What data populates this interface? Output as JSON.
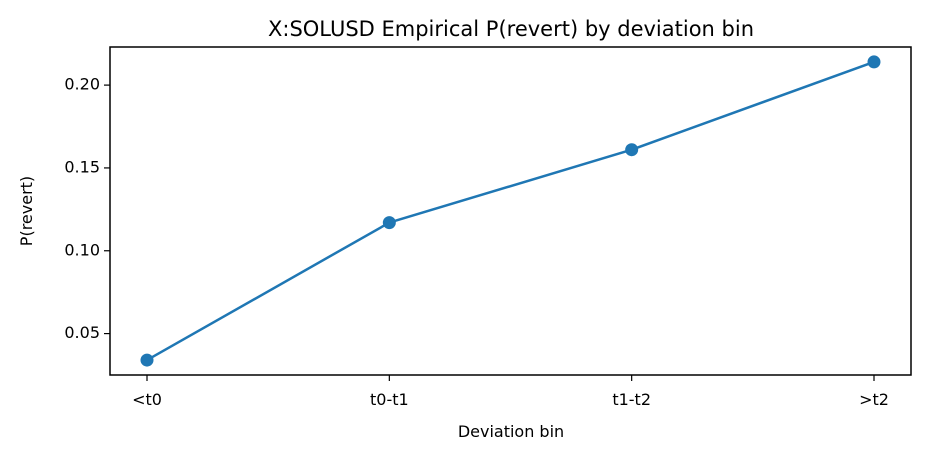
{
  "chart_data": {
    "type": "line",
    "title": "X:SOLUSD Empirical P(revert) by deviation bin",
    "xlabel": "Deviation bin",
    "ylabel": "P(revert)",
    "categories": [
      "<t0",
      "t0-t1",
      "t1-t2",
      ">t2"
    ],
    "series": [
      {
        "values": [
          0.034,
          0.117,
          0.161,
          0.214
        ],
        "color": "#1f77b4",
        "marker": "circle"
      }
    ],
    "yticks": [
      0.05,
      0.1,
      0.15,
      0.2
    ],
    "ytick_labels": [
      "0.05",
      "0.10",
      "0.15",
      "0.20"
    ],
    "ylim": [
      0.025,
      0.223
    ],
    "grid": false,
    "legend": false
  }
}
